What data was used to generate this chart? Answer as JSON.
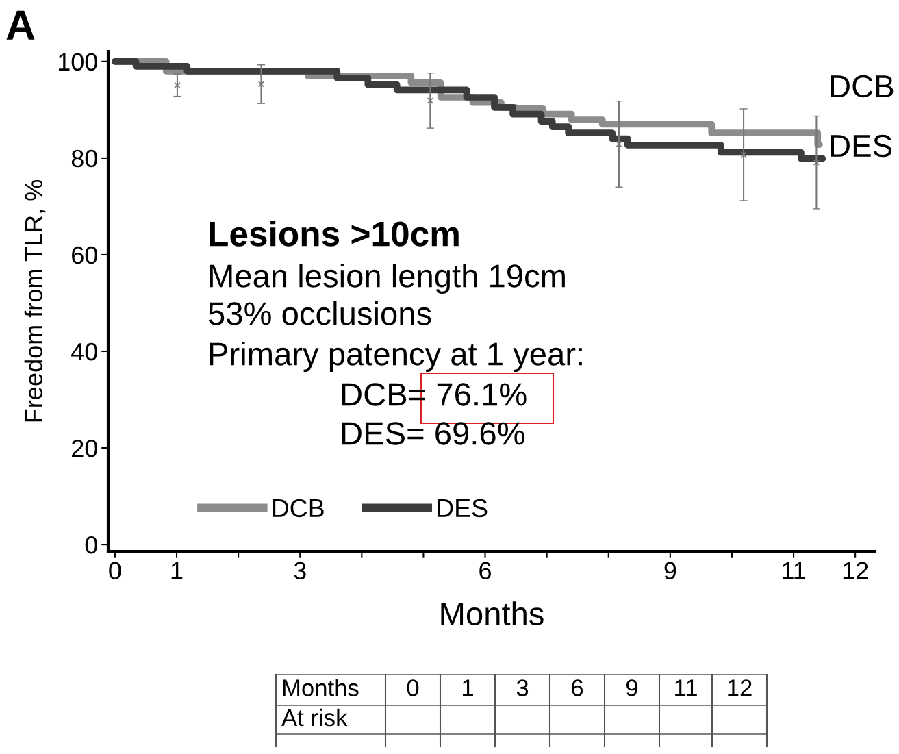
{
  "chart_data": {
    "type": "step",
    "xlabel": "Months",
    "ylabel": "Freedom from TLR, %",
    "xlim": [
      -0.11,
      12.32
    ],
    "ylim": [
      -1.4,
      102.1
    ],
    "xticks": [
      0,
      1,
      {
        "value": 2,
        "label": null
      },
      3,
      {
        "value": 4,
        "label": null
      },
      {
        "value": 5,
        "label": null
      },
      6,
      {
        "value": 7,
        "label": null
      },
      {
        "value": 8,
        "label": null
      },
      9,
      {
        "value": 10,
        "label": null
      },
      11,
      12
    ],
    "yticks": [
      0,
      20,
      40,
      60,
      80,
      100
    ],
    "grid": false,
    "legend": "bottom left",
    "marker": "none",
    "line_style": "solid",
    "series": [
      {
        "name": "DCB",
        "color": "#8c8c8c",
        "x": [
          0,
          0.83,
          3.13,
          4.8,
          5.28,
          5.8,
          6.26,
          6.49,
          6.94,
          7.4,
          7.9,
          9.67,
          11.39,
          11.42
        ],
        "values": [
          100,
          98,
          97,
          95.6,
          92.6,
          91.5,
          90.5,
          90.2,
          89.1,
          87.9,
          87.0,
          85.2,
          82.8,
          82.8
        ]
      },
      {
        "name": "DES",
        "color": "#3c3c3c",
        "x": [
          0,
          0.34,
          1.17,
          3.6,
          4.1,
          4.57,
          5.7,
          6.15,
          6.45,
          6.91,
          7.09,
          7.35,
          8.06,
          8.31,
          9.82,
          11.12,
          11.47
        ],
        "values": [
          100,
          99,
          98,
          96.6,
          95.2,
          94.1,
          92.6,
          90.5,
          89.1,
          87.6,
          86.5,
          85.2,
          84.0,
          82.7,
          81.2,
          79.9,
          79.9
        ]
      },
      {
        "type": "scatter",
        "marker": "cross",
        "color": "#777777",
        "x": [
          1.01,
          2.37,
          5.11,
          8.17,
          10.19,
          11.37
        ],
        "values": [
          95.1,
          95.3,
          91.9,
          82.9,
          80.7,
          79.1
        ],
        "errors": [
          2.3,
          4.0,
          5.7,
          8.9,
          9.5,
          9.6
        ]
      }
    ],
    "annotations": [
      "A",
      "Lesions >10cm",
      "Mean lesion length 19cm",
      "53% occlusions",
      "Primary patency at 1 year:",
      "DCB= 76.1%",
      "DES= 69.6%",
      "DCB",
      "DES",
      "Months",
      "0",
      "1",
      "3",
      "6",
      "9",
      "11",
      "12",
      "At risk"
    ]
  }
}
